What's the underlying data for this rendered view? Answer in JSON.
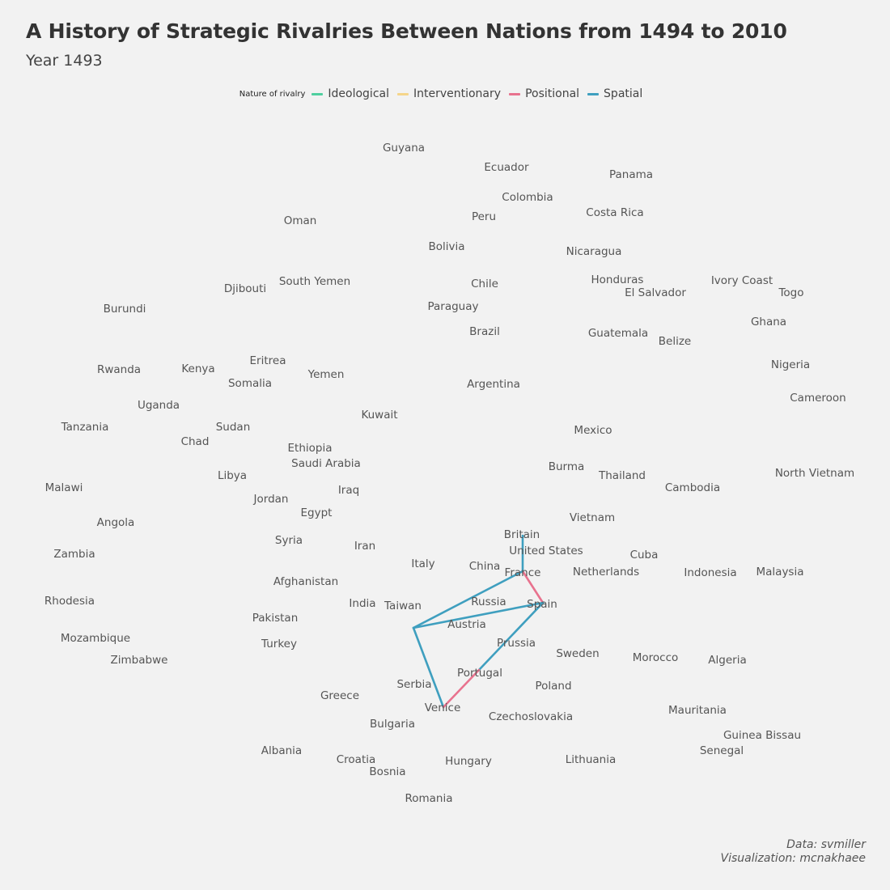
{
  "title": "A History of Strategic Rivalries Between Nations from 1494 to 2010",
  "subtitle": "Year 1493",
  "legend": {
    "title": "Nature of rivalry",
    "items": [
      {
        "label": "Ideological",
        "color": "#4fcf9f"
      },
      {
        "label": "Interventionary",
        "color": "#f5d58a"
      },
      {
        "label": "Positional",
        "color": "#e8728e"
      },
      {
        "label": "Spatial",
        "color": "#3f9fbf"
      }
    ]
  },
  "caption": {
    "line1": "Data: svmiller",
    "line2": "Visualization: mcnakhaee"
  },
  "chart_data": {
    "type": "network",
    "nodes": [
      "Guyana",
      "Ecuador",
      "Panama",
      "Colombia",
      "Oman",
      "Peru",
      "Costa Rica",
      "Bolivia",
      "Nicaragua",
      "South Yemen",
      "Djibouti",
      "Chile",
      "Honduras",
      "Ivory Coast",
      "El Salvador",
      "Togo",
      "Burundi",
      "Paraguay",
      "Brazil",
      "Guatemala",
      "Ghana",
      "Belize",
      "Eritrea",
      "Rwanda",
      "Kenya",
      "Yemen",
      "Nigeria",
      "Somalia",
      "Argentina",
      "Cameroon",
      "Uganda",
      "Kuwait",
      "Tanzania",
      "Sudan",
      "Mexico",
      "Chad",
      "Ethiopia",
      "Saudi Arabia",
      "Burma",
      "North Vietnam",
      "Libya",
      "Thailand",
      "Malawi",
      "Cambodia",
      "Iraq",
      "Jordan",
      "Egypt",
      "Vietnam",
      "Angola",
      "Britain",
      "Syria",
      "Iran",
      "United States",
      "Zambia",
      "Cuba",
      "Italy",
      "China",
      "France",
      "Netherlands",
      "Indonesia",
      "Malaysia",
      "Afghanistan",
      "Rhodesia",
      "India",
      "Russia",
      "Taiwan",
      "Spain",
      "Pakistan",
      "Austria",
      "Mozambique",
      "Prussia",
      "Turkey",
      "Sweden",
      "Morocco",
      "Zimbabwe",
      "Algeria",
      "Portugal",
      "Serbia",
      "Poland",
      "Greece",
      "Venice",
      "Mauritania",
      "Czechoslovakia",
      "Bulgaria",
      "Guinea Bissau",
      "Albania",
      "Senegal",
      "Croatia",
      "Lithuania",
      "Hungary",
      "Bosnia",
      "Romania"
    ],
    "edges": [
      {
        "from": "France",
        "to": "Britain",
        "type": "Spatial"
      },
      {
        "from": "France",
        "to": "Spain",
        "type": "Positional"
      },
      {
        "from": "France",
        "to": "Austria",
        "type": "Spatial"
      },
      {
        "from": "Spain",
        "to": "Austria",
        "type": "Spatial"
      },
      {
        "from": "Spain",
        "to": "Portugal",
        "type": "Spatial"
      },
      {
        "from": "Austria",
        "to": "Venice",
        "type": "Spatial"
      },
      {
        "from": "Portugal",
        "to": "Venice",
        "type": "Positional"
      }
    ]
  }
}
